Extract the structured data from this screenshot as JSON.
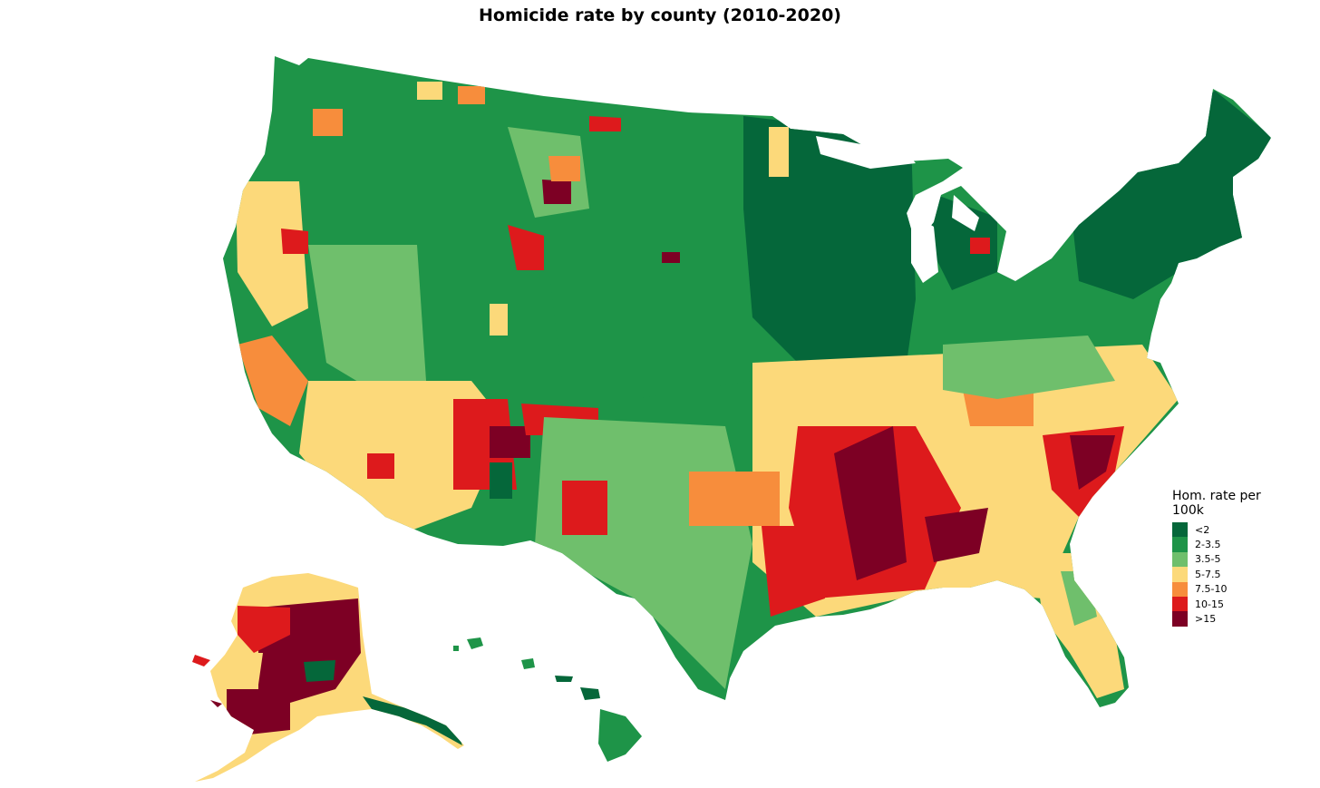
{
  "title": "Homicide rate by county (2010-2020)",
  "legend": {
    "title": "Hom. rate per 100k",
    "items": [
      {
        "label": "<2",
        "color": "#05673a"
      },
      {
        "label": "2-3.5",
        "color": "#1e9448"
      },
      {
        "label": "3.5-5",
        "color": "#6fbf6c"
      },
      {
        "label": "5-7.5",
        "color": "#fcd97a"
      },
      {
        "label": "7.5-10",
        "color": "#f78d3c"
      },
      {
        "label": "10-15",
        "color": "#dd1a1c"
      },
      {
        "label": ">15",
        "color": "#7d0024"
      }
    ]
  },
  "regions": [
    {
      "name": "Contiguous United States",
      "color": "#1e9448"
    },
    {
      "name": "Alaska",
      "color": "#fcd97a"
    },
    {
      "name": "Hawaii",
      "color": "#1e9448"
    }
  ]
}
